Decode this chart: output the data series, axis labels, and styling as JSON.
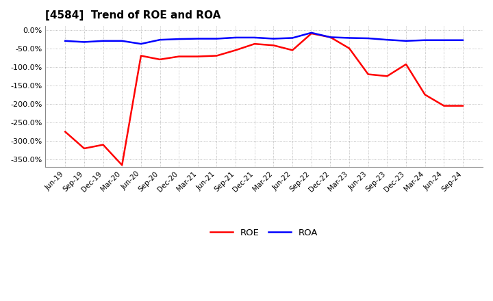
{
  "title": "[4584]  Trend of ROE and ROA",
  "x_labels": [
    "Jun-19",
    "Sep-19",
    "Dec-19",
    "Mar-20",
    "Jun-20",
    "Sep-20",
    "Dec-20",
    "Mar-21",
    "Jun-21",
    "Sep-21",
    "Dec-21",
    "Mar-22",
    "Jun-22",
    "Sep-22",
    "Dec-22",
    "Mar-23",
    "Jun-23",
    "Sep-23",
    "Dec-23",
    "Mar-24",
    "Jun-24",
    "Sep-24"
  ],
  "roe": [
    -275,
    -320,
    -310,
    -365,
    -70,
    -80,
    -72,
    -72,
    -70,
    -55,
    -38,
    -42,
    -55,
    -10,
    -20,
    -50,
    -120,
    -125,
    -93,
    -175,
    -205,
    -205
  ],
  "roa": [
    -30,
    -33,
    -30,
    -30,
    -38,
    -27,
    -25,
    -24,
    -24,
    -21,
    -21,
    -24,
    -22,
    -8,
    -20,
    -22,
    -23,
    -27,
    -30,
    -28,
    -28,
    -28
  ],
  "roe_color": "#ff0000",
  "roa_color": "#0000ff",
  "ylim": [
    -370,
    10
  ],
  "yticks": [
    0,
    -50,
    -100,
    -150,
    -200,
    -250,
    -300,
    -350
  ],
  "background_color": "#ffffff",
  "grid_color": "#888888",
  "plot_bg_color": "#ffffff"
}
